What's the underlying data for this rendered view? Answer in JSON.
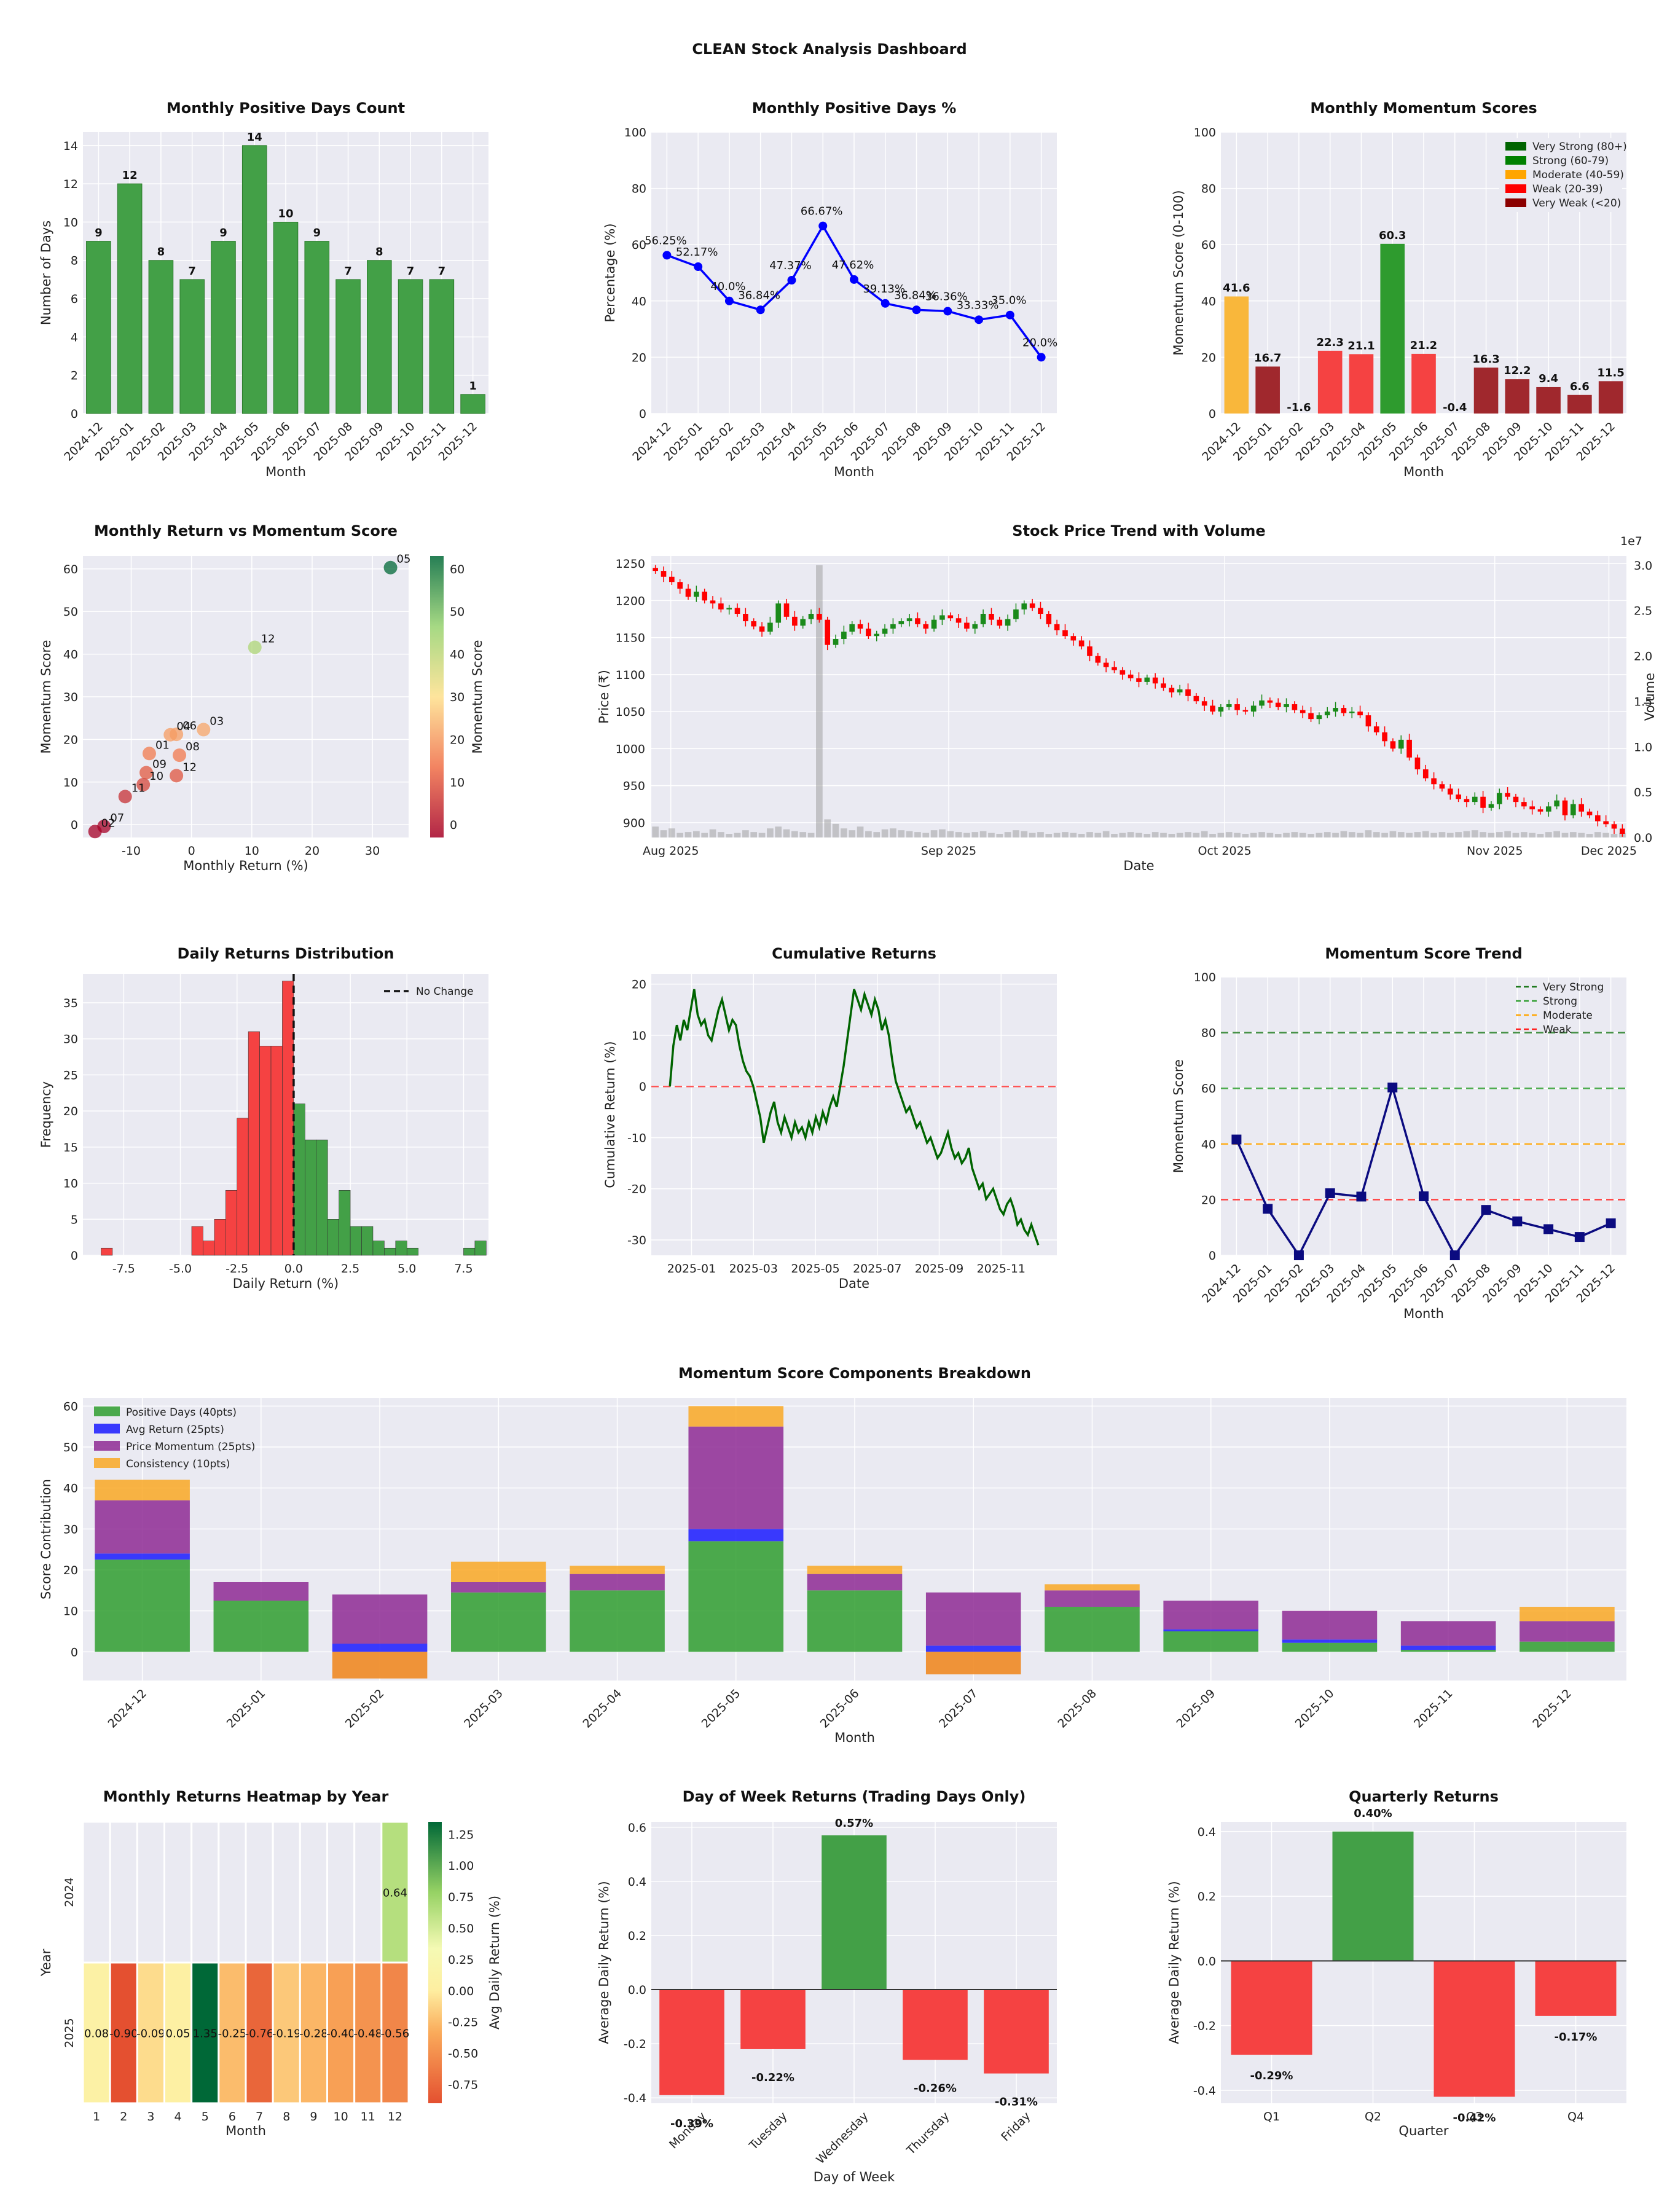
{
  "page_title": "CLEAN Stock Analysis Dashboard",
  "colors": {
    "green": "#43a047",
    "red": "#f54242",
    "orange": "#f9b73b",
    "darkred": "#a0282d",
    "blue": "#1515e6",
    "navy": "#0b0b80",
    "purple": "#9b3fa0",
    "panel": "#eaeaf2"
  },
  "chart_data": [
    {
      "id": "positive-days-count",
      "type": "bar",
      "title": "Monthly Positive Days Count",
      "xlabel": "Month",
      "ylabel": "Number of Days",
      "categories": [
        "2024-12",
        "2025-01",
        "2025-02",
        "2025-03",
        "2025-04",
        "2025-05",
        "2025-06",
        "2025-07",
        "2025-08",
        "2025-09",
        "2025-10",
        "2025-11",
        "2025-12"
      ],
      "values": [
        9,
        12,
        8,
        7,
        9,
        14,
        10,
        9,
        7,
        8,
        7,
        7,
        1
      ],
      "data_labels": [
        "9",
        "12",
        "8",
        "7",
        "9",
        "14",
        "10",
        "9",
        "7",
        "8",
        "7",
        "7",
        "1"
      ],
      "ylim": [
        0,
        14.7
      ],
      "yticks": [
        "0",
        "2",
        "4",
        "6",
        "8",
        "10",
        "12",
        "14"
      ]
    },
    {
      "id": "positive-days-pct",
      "type": "line",
      "title": "Monthly Positive Days %",
      "xlabel": "Month",
      "ylabel": "Percentage (%)",
      "categories": [
        "2024-12",
        "2025-01",
        "2025-02",
        "2025-03",
        "2025-04",
        "2025-05",
        "2025-06",
        "2025-07",
        "2025-08",
        "2025-09",
        "2025-10",
        "2025-11",
        "2025-12"
      ],
      "values": [
        56.25,
        52.17,
        40.0,
        36.84,
        47.37,
        66.67,
        47.62,
        39.13,
        36.84,
        36.36,
        33.33,
        35.0,
        20.0
      ],
      "data_labels": [
        "56.25%",
        "52.17%",
        "40.0%",
        "36.84%",
        "47.37%",
        "66.67%",
        "47.62%",
        "39.13%",
        "36.84%",
        "36.36%",
        "33.33%",
        "35.0%",
        "20.0%"
      ],
      "ylim": [
        0,
        100
      ],
      "yticks": [
        "0",
        "20",
        "40",
        "60",
        "80",
        "100"
      ]
    },
    {
      "id": "momentum-scores",
      "type": "bar",
      "title": "Monthly Momentum Scores",
      "xlabel": "Month",
      "ylabel": "Momentum Score (0-100)",
      "categories": [
        "2024-12",
        "2025-01",
        "2025-02",
        "2025-03",
        "2025-04",
        "2025-05",
        "2025-06",
        "2025-07",
        "2025-08",
        "2025-09",
        "2025-10",
        "2025-11",
        "2025-12"
      ],
      "values": [
        41.6,
        16.7,
        -1.6,
        22.3,
        21.1,
        60.3,
        21.2,
        -0.4,
        16.3,
        12.2,
        9.4,
        6.6,
        11.5
      ],
      "data_labels": [
        "41.6",
        "16.7",
        "-1.6",
        "22.3",
        "21.1",
        "60.3",
        "21.2",
        "-0.4",
        "16.3",
        "12.2",
        "9.4",
        "6.6",
        "11.5"
      ],
      "bar_colors": [
        "#f9b73b",
        "#a0282d",
        "#a0282d",
        "#f54242",
        "#f54242",
        "#2e9b2e",
        "#f54242",
        "#a0282d",
        "#a0282d",
        "#a0282d",
        "#a0282d",
        "#a0282d",
        "#a0282d"
      ],
      "ylim": [
        0,
        100
      ],
      "yticks": [
        "0",
        "20",
        "40",
        "60",
        "80",
        "100"
      ],
      "legend": [
        {
          "label": "Very Strong (80+)",
          "color": "#006400"
        },
        {
          "label": "Strong (60-79)",
          "color": "#008000"
        },
        {
          "label": "Moderate (40-59)",
          "color": "#ffa500"
        },
        {
          "label": "Weak (20-39)",
          "color": "#ff0000"
        },
        {
          "label": "Very Weak (<20)",
          "color": "#8b0000"
        }
      ]
    },
    {
      "id": "return-vs-momentum",
      "type": "scatter",
      "title": "Monthly Return vs Momentum Score",
      "xlabel": "Monthly Return (%)",
      "ylabel": "Momentum Score",
      "colorbar_label": "Momentum Score",
      "colorbar_ticks": [
        "0",
        "10",
        "20",
        "30",
        "40",
        "50",
        "60"
      ],
      "xlim": [
        -18,
        36
      ],
      "ylim": [
        -3,
        63
      ],
      "xticks": [
        "-10",
        "0",
        "10",
        "20",
        "30"
      ],
      "yticks": [
        "0",
        "10",
        "20",
        "30",
        "40",
        "50",
        "60"
      ],
      "points": [
        {
          "label": "05",
          "x": 33,
          "y": 60.3
        },
        {
          "label": "12",
          "x": 10.5,
          "y": 41.6
        },
        {
          "label": "03",
          "x": 2,
          "y": 22.3
        },
        {
          "label": "06",
          "x": -2.5,
          "y": 21.2
        },
        {
          "label": "04",
          "x": -3.5,
          "y": 21.1
        },
        {
          "label": "01",
          "x": -7,
          "y": 16.7
        },
        {
          "label": "08",
          "x": -2,
          "y": 16.3
        },
        {
          "label": "09",
          "x": -7.5,
          "y": 12.2
        },
        {
          "label": "12",
          "x": -2.5,
          "y": 11.5
        },
        {
          "label": "10",
          "x": -8,
          "y": 9.4
        },
        {
          "label": "11",
          "x": -11,
          "y": 6.6
        },
        {
          "label": "07",
          "x": -14.5,
          "y": -0.4
        },
        {
          "label": "02",
          "x": -16,
          "y": -1.6
        }
      ]
    },
    {
      "id": "price-trend",
      "type": "candlestick",
      "title": "Stock Price Trend with Volume",
      "xlabel": "Date",
      "ylabel": "Price (₹)",
      "y2label": "Volume",
      "y2_offset": "1e7",
      "xticks": [
        "Aug 2025",
        "Sep 2025",
        "Oct 2025",
        "Nov 2025",
        "Dec 2025"
      ],
      "yticks": [
        "900",
        "950",
        "1000",
        "1050",
        "1100",
        "1150",
        "1200",
        "1250"
      ],
      "y2ticks": [
        "0.0",
        "0.5",
        "1.0",
        "1.5",
        "2.0",
        "2.5",
        "3.0"
      ],
      "ylim": [
        880,
        1260
      ],
      "closes": [
        1240,
        1232,
        1225,
        1216,
        1205,
        1212,
        1200,
        1196,
        1188,
        1190,
        1182,
        1172,
        1165,
        1158,
        1170,
        1196,
        1178,
        1166,
        1175,
        1182,
        1174,
        1140,
        1148,
        1158,
        1168,
        1162,
        1152,
        1155,
        1162,
        1168,
        1172,
        1176,
        1168,
        1162,
        1174,
        1180,
        1176,
        1170,
        1162,
        1168,
        1182,
        1174,
        1166,
        1175,
        1188,
        1196,
        1190,
        1182,
        1168,
        1160,
        1152,
        1146,
        1138,
        1125,
        1116,
        1110,
        1106,
        1100,
        1095,
        1090,
        1096,
        1088,
        1082,
        1076,
        1080,
        1071,
        1064,
        1058,
        1050,
        1056,
        1060,
        1052,
        1050,
        1058,
        1065,
        1062,
        1056,
        1060,
        1052,
        1048,
        1040,
        1045,
        1050,
        1055,
        1048,
        1050,
        1045,
        1030,
        1022,
        1010,
        1000,
        1012,
        988,
        972,
        960,
        952,
        946,
        938,
        932,
        928,
        935,
        920,
        925,
        940,
        935,
        928,
        922,
        918,
        915,
        922,
        930,
        910,
        925,
        915,
        910,
        902,
        898,
        892,
        885
      ],
      "volumes": [
        0.12,
        0.08,
        0.1,
        0.05,
        0.06,
        0.07,
        0.05,
        0.09,
        0.06,
        0.04,
        0.05,
        0.08,
        0.06,
        0.05,
        0.1,
        0.12,
        0.09,
        0.07,
        0.06,
        0.05,
        3.0,
        0.2,
        0.15,
        0.1,
        0.08,
        0.12,
        0.07,
        0.06,
        0.09,
        0.1,
        0.08,
        0.07,
        0.06,
        0.05,
        0.08,
        0.09,
        0.07,
        0.06,
        0.05,
        0.06,
        0.07,
        0.05,
        0.04,
        0.06,
        0.08,
        0.07,
        0.05,
        0.06,
        0.04,
        0.05,
        0.06,
        0.05,
        0.04,
        0.06,
        0.05,
        0.07,
        0.04,
        0.05,
        0.06,
        0.05,
        0.04,
        0.06,
        0.05,
        0.04,
        0.05,
        0.06,
        0.05,
        0.07,
        0.04,
        0.05,
        0.06,
        0.05,
        0.04,
        0.05,
        0.06,
        0.05,
        0.04,
        0.05,
        0.06,
        0.05,
        0.04,
        0.05,
        0.06,
        0.05,
        0.07,
        0.06,
        0.05,
        0.08,
        0.06,
        0.05,
        0.07,
        0.06,
        0.05,
        0.06,
        0.07,
        0.05,
        0.06,
        0.05,
        0.06,
        0.07,
        0.08,
        0.06,
        0.05,
        0.06,
        0.07,
        0.05,
        0.06,
        0.05,
        0.04,
        0.06,
        0.07,
        0.05,
        0.06,
        0.05,
        0.04,
        0.06,
        0.05,
        0.04,
        0.05
      ]
    },
    {
      "id": "daily-returns-dist",
      "type": "histogram",
      "title": "Daily Returns Distribution",
      "xlabel": "Daily Return (%)",
      "ylabel": "Frequency",
      "legend_label": "No Change",
      "bin_start": -8.5,
      "bin_width": 0.5,
      "counts": [
        1,
        0,
        0,
        0,
        0,
        0,
        0,
        0,
        4,
        2,
        5,
        9,
        19,
        31,
        29,
        29,
        38,
        21,
        16,
        16,
        5,
        9,
        4,
        4,
        2,
        1,
        2,
        1,
        0,
        0,
        0,
        0,
        1,
        2
      ],
      "xlim": [
        -9.3,
        8.6
      ],
      "ylim": [
        0,
        39
      ],
      "xticks": [
        "-7.5",
        "-5.0",
        "-2.5",
        "0.0",
        "2.5",
        "5.0",
        "7.5"
      ],
      "yticks": [
        "0",
        "5",
        "10",
        "15",
        "20",
        "25",
        "30",
        "35"
      ]
    },
    {
      "id": "cumulative-returns",
      "type": "line",
      "title": "Cumulative Returns",
      "xlabel": "Date",
      "ylabel": "Cumulative Return (%)",
      "xticks": [
        "2025-01",
        "2025-03",
        "2025-05",
        "2025-07",
        "2025-09",
        "2025-11"
      ],
      "yticks": [
        "-30",
        "-20",
        "-10",
        "0",
        "10",
        "20"
      ],
      "ylim": [
        -33,
        22
      ],
      "x_start_month": -0.7,
      "x_end_month": 11.2,
      "values": [
        0,
        8,
        12,
        9,
        13,
        11,
        15,
        19,
        14,
        12,
        13,
        10,
        9,
        12,
        15,
        17,
        14,
        11,
        13,
        12,
        8,
        5,
        3,
        2,
        0,
        -3,
        -6,
        -11,
        -8,
        -5,
        -3,
        -7,
        -9,
        -6,
        -8,
        -10,
        -7,
        -9,
        -8,
        -10,
        -7,
        -9,
        -6,
        -8,
        -5,
        -7,
        -4,
        -2,
        -4,
        0,
        4,
        9,
        14,
        19,
        17,
        15,
        18,
        16,
        14,
        17,
        15,
        11,
        13,
        10,
        5,
        1,
        -1,
        -3,
        -5,
        -4,
        -6,
        -8,
        -7,
        -9,
        -11,
        -10,
        -12,
        -14,
        -13,
        -11,
        -9,
        -12,
        -14,
        -13,
        -15,
        -14,
        -12,
        -16,
        -18,
        -20,
        -19,
        -22,
        -21,
        -20,
        -22,
        -24,
        -25,
        -23,
        -22,
        -24,
        -27,
        -26,
        -28,
        -29,
        -27,
        -29,
        -31
      ]
    },
    {
      "id": "momentum-trend",
      "type": "line",
      "title": "Momentum Score Trend",
      "xlabel": "Month",
      "ylabel": "Momentum Score",
      "categories": [
        "2024-12",
        "2025-01",
        "2025-02",
        "2025-03",
        "2025-04",
        "2025-05",
        "2025-06",
        "2025-07",
        "2025-08",
        "2025-09",
        "2025-10",
        "2025-11",
        "2025-12"
      ],
      "values": [
        41.6,
        16.7,
        -1.6,
        22.3,
        21.1,
        60.3,
        21.2,
        -0.4,
        16.3,
        12.2,
        9.4,
        6.6,
        11.5
      ],
      "ylim": [
        0,
        100
      ],
      "yticks": [
        "0",
        "20",
        "40",
        "60",
        "80",
        "100"
      ],
      "thresholds": [
        {
          "label": "Very Strong",
          "value": 80,
          "color": "#1f7a1f"
        },
        {
          "label": "Strong",
          "value": 60,
          "color": "#2f9e2f"
        },
        {
          "label": "Moderate",
          "value": 40,
          "color": "#ffa500"
        },
        {
          "label": "Weak",
          "value": 20,
          "color": "#ff2222"
        }
      ]
    },
    {
      "id": "components-breakdown",
      "type": "stacked_bar",
      "title": "Momentum Score Components Breakdown",
      "xlabel": "Month",
      "ylabel": "Score Contribution",
      "categories": [
        "2024-12",
        "2025-01",
        "2025-02",
        "2025-03",
        "2025-04",
        "2025-05",
        "2025-06",
        "2025-07",
        "2025-08",
        "2025-09",
        "2025-10",
        "2025-11",
        "2025-12"
      ],
      "ylim": [
        -7,
        62
      ],
      "yticks": [
        "0",
        "10",
        "20",
        "30",
        "40",
        "50",
        "60"
      ],
      "series": [
        {
          "name": "Positive Days (40pts)",
          "color": "#2f9e2f",
          "values": [
            22.5,
            12.5,
            0,
            14.5,
            15,
            27,
            15,
            0,
            11,
            5,
            2.2,
            0.5,
            2.5
          ]
        },
        {
          "name": "Avg Return (25pts)",
          "color": "#1a1aff",
          "values": [
            1.5,
            0,
            2,
            0,
            0,
            3,
            0,
            1.5,
            0,
            0.5,
            0.8,
            1,
            0
          ]
        },
        {
          "name": "Price Momentum (25pts)",
          "color": "#8e2a94",
          "values": [
            13,
            4.5,
            12,
            2.5,
            4,
            25,
            4,
            13,
            4,
            7,
            7,
            6,
            5
          ]
        },
        {
          "name": "Consistency (10pts)",
          "color": "#f9a825",
          "values": [
            5,
            0,
            0,
            5,
            2,
            5,
            2,
            0,
            1.5,
            0,
            0,
            0,
            3.5
          ]
        }
      ],
      "negative_offsets": [
        0,
        0,
        -6.5,
        0,
        0,
        0,
        0,
        -5.5,
        0,
        0,
        0,
        0,
        0
      ]
    },
    {
      "id": "returns-heatmap",
      "type": "heatmap",
      "title": "Monthly Returns Heatmap by Year",
      "xlabel": "Month",
      "ylabel": "Year",
      "colorbar_label": "Avg Daily Return (%)",
      "colorbar_ticks": [
        "1.25",
        "1.00",
        "0.75",
        "0.50",
        "0.25",
        "0.00",
        "-0.25",
        "-0.50",
        "-0.75"
      ],
      "columns": [
        "1",
        "2",
        "3",
        "4",
        "5",
        "6",
        "7",
        "8",
        "9",
        "10",
        "11",
        "12"
      ],
      "rows": [
        "2024",
        "2025"
      ],
      "values": [
        [
          null,
          null,
          null,
          null,
          null,
          null,
          null,
          null,
          null,
          null,
          null,
          0.64
        ],
        [
          0.08,
          -0.9,
          -0.09,
          0.05,
          1.35,
          -0.25,
          -0.76,
          -0.19,
          -0.28,
          -0.4,
          -0.48,
          -0.56
        ]
      ],
      "cell_labels": [
        [
          "",
          "",
          "",
          "",
          "",
          "",
          "",
          "",
          "",
          "",
          "",
          "0.64"
        ],
        [
          "0.08",
          "-0.90",
          "-0.09",
          "0.05",
          "1.35",
          "-0.25",
          "-0.76",
          "-0.19",
          "-0.28",
          "-0.40",
          "-0.48",
          "-0.56"
        ]
      ]
    },
    {
      "id": "day-of-week",
      "type": "bar",
      "title": "Day of Week Returns (Trading Days Only)",
      "xlabel": "Day of Week",
      "ylabel": "Average Daily Return (%)",
      "categories": [
        "Monday",
        "Tuesday",
        "Wednesday",
        "Thursday",
        "Friday"
      ],
      "values": [
        -0.39,
        -0.22,
        0.57,
        -0.26,
        -0.31
      ],
      "data_labels": [
        "-0.39%",
        "-0.22%",
        "0.57%",
        "-0.26%",
        "-0.31%"
      ],
      "ylim": [
        -0.42,
        0.62
      ],
      "yticks": [
        "-0.4",
        "-0.2",
        "0.0",
        "0.2",
        "0.4",
        "0.6"
      ]
    },
    {
      "id": "quarterly-returns",
      "type": "bar",
      "title": "Quarterly Returns",
      "xlabel": "Quarter",
      "ylabel": "Average Daily Return (%)",
      "categories": [
        "Q1",
        "Q2",
        "Q3",
        "Q4"
      ],
      "values": [
        -0.29,
        0.4,
        -0.42,
        -0.17
      ],
      "data_labels": [
        "-0.29%",
        "0.40%",
        "-0.42%",
        "-0.17%"
      ],
      "ylim": [
        -0.44,
        0.43
      ],
      "yticks": [
        "-0.4",
        "-0.2",
        "0.0",
        "0.2",
        "0.4"
      ]
    }
  ]
}
